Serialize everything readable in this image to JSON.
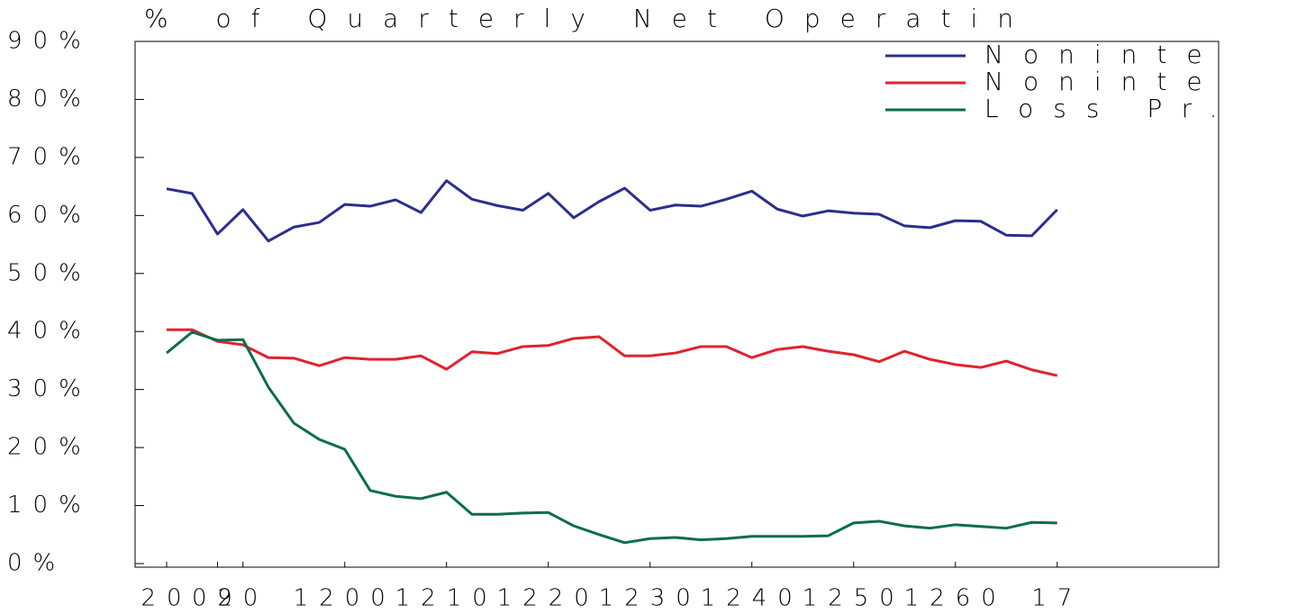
{
  "chart_data": {
    "type": "line",
    "title": "% of Quarterly Net Operatin",
    "categories": [
      "20",
      null,
      "02",
      "90",
      null,
      null,
      null,
      "1200",
      null,
      null,
      null,
      "1210",
      null,
      null,
      null,
      "1220",
      null,
      null,
      null,
      "1230",
      null,
      null,
      null,
      "1240",
      null,
      null,
      null,
      "1250",
      null,
      null,
      null,
      "1260",
      null,
      null,
      null,
      "17"
    ],
    "series": [
      {
        "name": "Noninte",
        "color": "#2b2f8c",
        "values": [
          64.6,
          63.8,
          56.8,
          61.0,
          55.6,
          58.0,
          58.8,
          61.9,
          61.6,
          62.7,
          60.5,
          66.0,
          62.8,
          61.7,
          60.9,
          63.8,
          59.6,
          62.4,
          64.7,
          60.9,
          61.8,
          61.6,
          62.8,
          64.2,
          61.1,
          59.9,
          60.8,
          60.4,
          60.2,
          58.2,
          57.9,
          59.1,
          59.0,
          56.6,
          56.5,
          61.0
        ]
      },
      {
        "name": "Noninte",
        "color": "#e0232b",
        "values": [
          40.3,
          40.3,
          38.3,
          37.7,
          35.5,
          35.4,
          34.1,
          35.5,
          35.2,
          35.2,
          35.8,
          33.5,
          36.5,
          36.2,
          37.4,
          37.6,
          38.8,
          39.1,
          35.8,
          35.8,
          36.3,
          37.4,
          37.4,
          35.5,
          36.9,
          37.4,
          36.6,
          36.0,
          34.8,
          36.6,
          35.2,
          34.3,
          33.8,
          34.9,
          33.4,
          32.4
        ]
      },
      {
        "name": "Loss Pr.",
        "color": "#0b6e4a",
        "values": [
          36.3,
          39.9,
          38.5,
          38.6,
          30.4,
          24.2,
          21.4,
          19.7,
          12.6,
          11.6,
          11.2,
          12.3,
          8.5,
          8.5,
          8.7,
          8.8,
          6.5,
          5.0,
          3.6,
          4.3,
          4.5,
          4.1,
          4.3,
          4.7,
          4.7,
          4.7,
          4.8,
          7.0,
          7.3,
          6.5,
          6.1,
          6.7,
          6.4,
          6.1,
          7.1,
          7.0
        ]
      }
    ],
    "ylim": [
      0,
      90
    ],
    "yticks": [
      {
        "value": 0,
        "label": "0%"
      },
      {
        "value": 10,
        "label": "10%"
      },
      {
        "value": 20,
        "label": "20%"
      },
      {
        "value": 30,
        "label": "30%"
      },
      {
        "value": 40,
        "label": "40%"
      },
      {
        "value": 50,
        "label": "50%"
      },
      {
        "value": 60,
        "label": "60%"
      },
      {
        "value": 70,
        "label": "70%"
      },
      {
        "value": 80,
        "label": "80%"
      },
      {
        "value": 90,
        "label": "90%"
      }
    ],
    "grid": false,
    "legend": "top-right"
  }
}
